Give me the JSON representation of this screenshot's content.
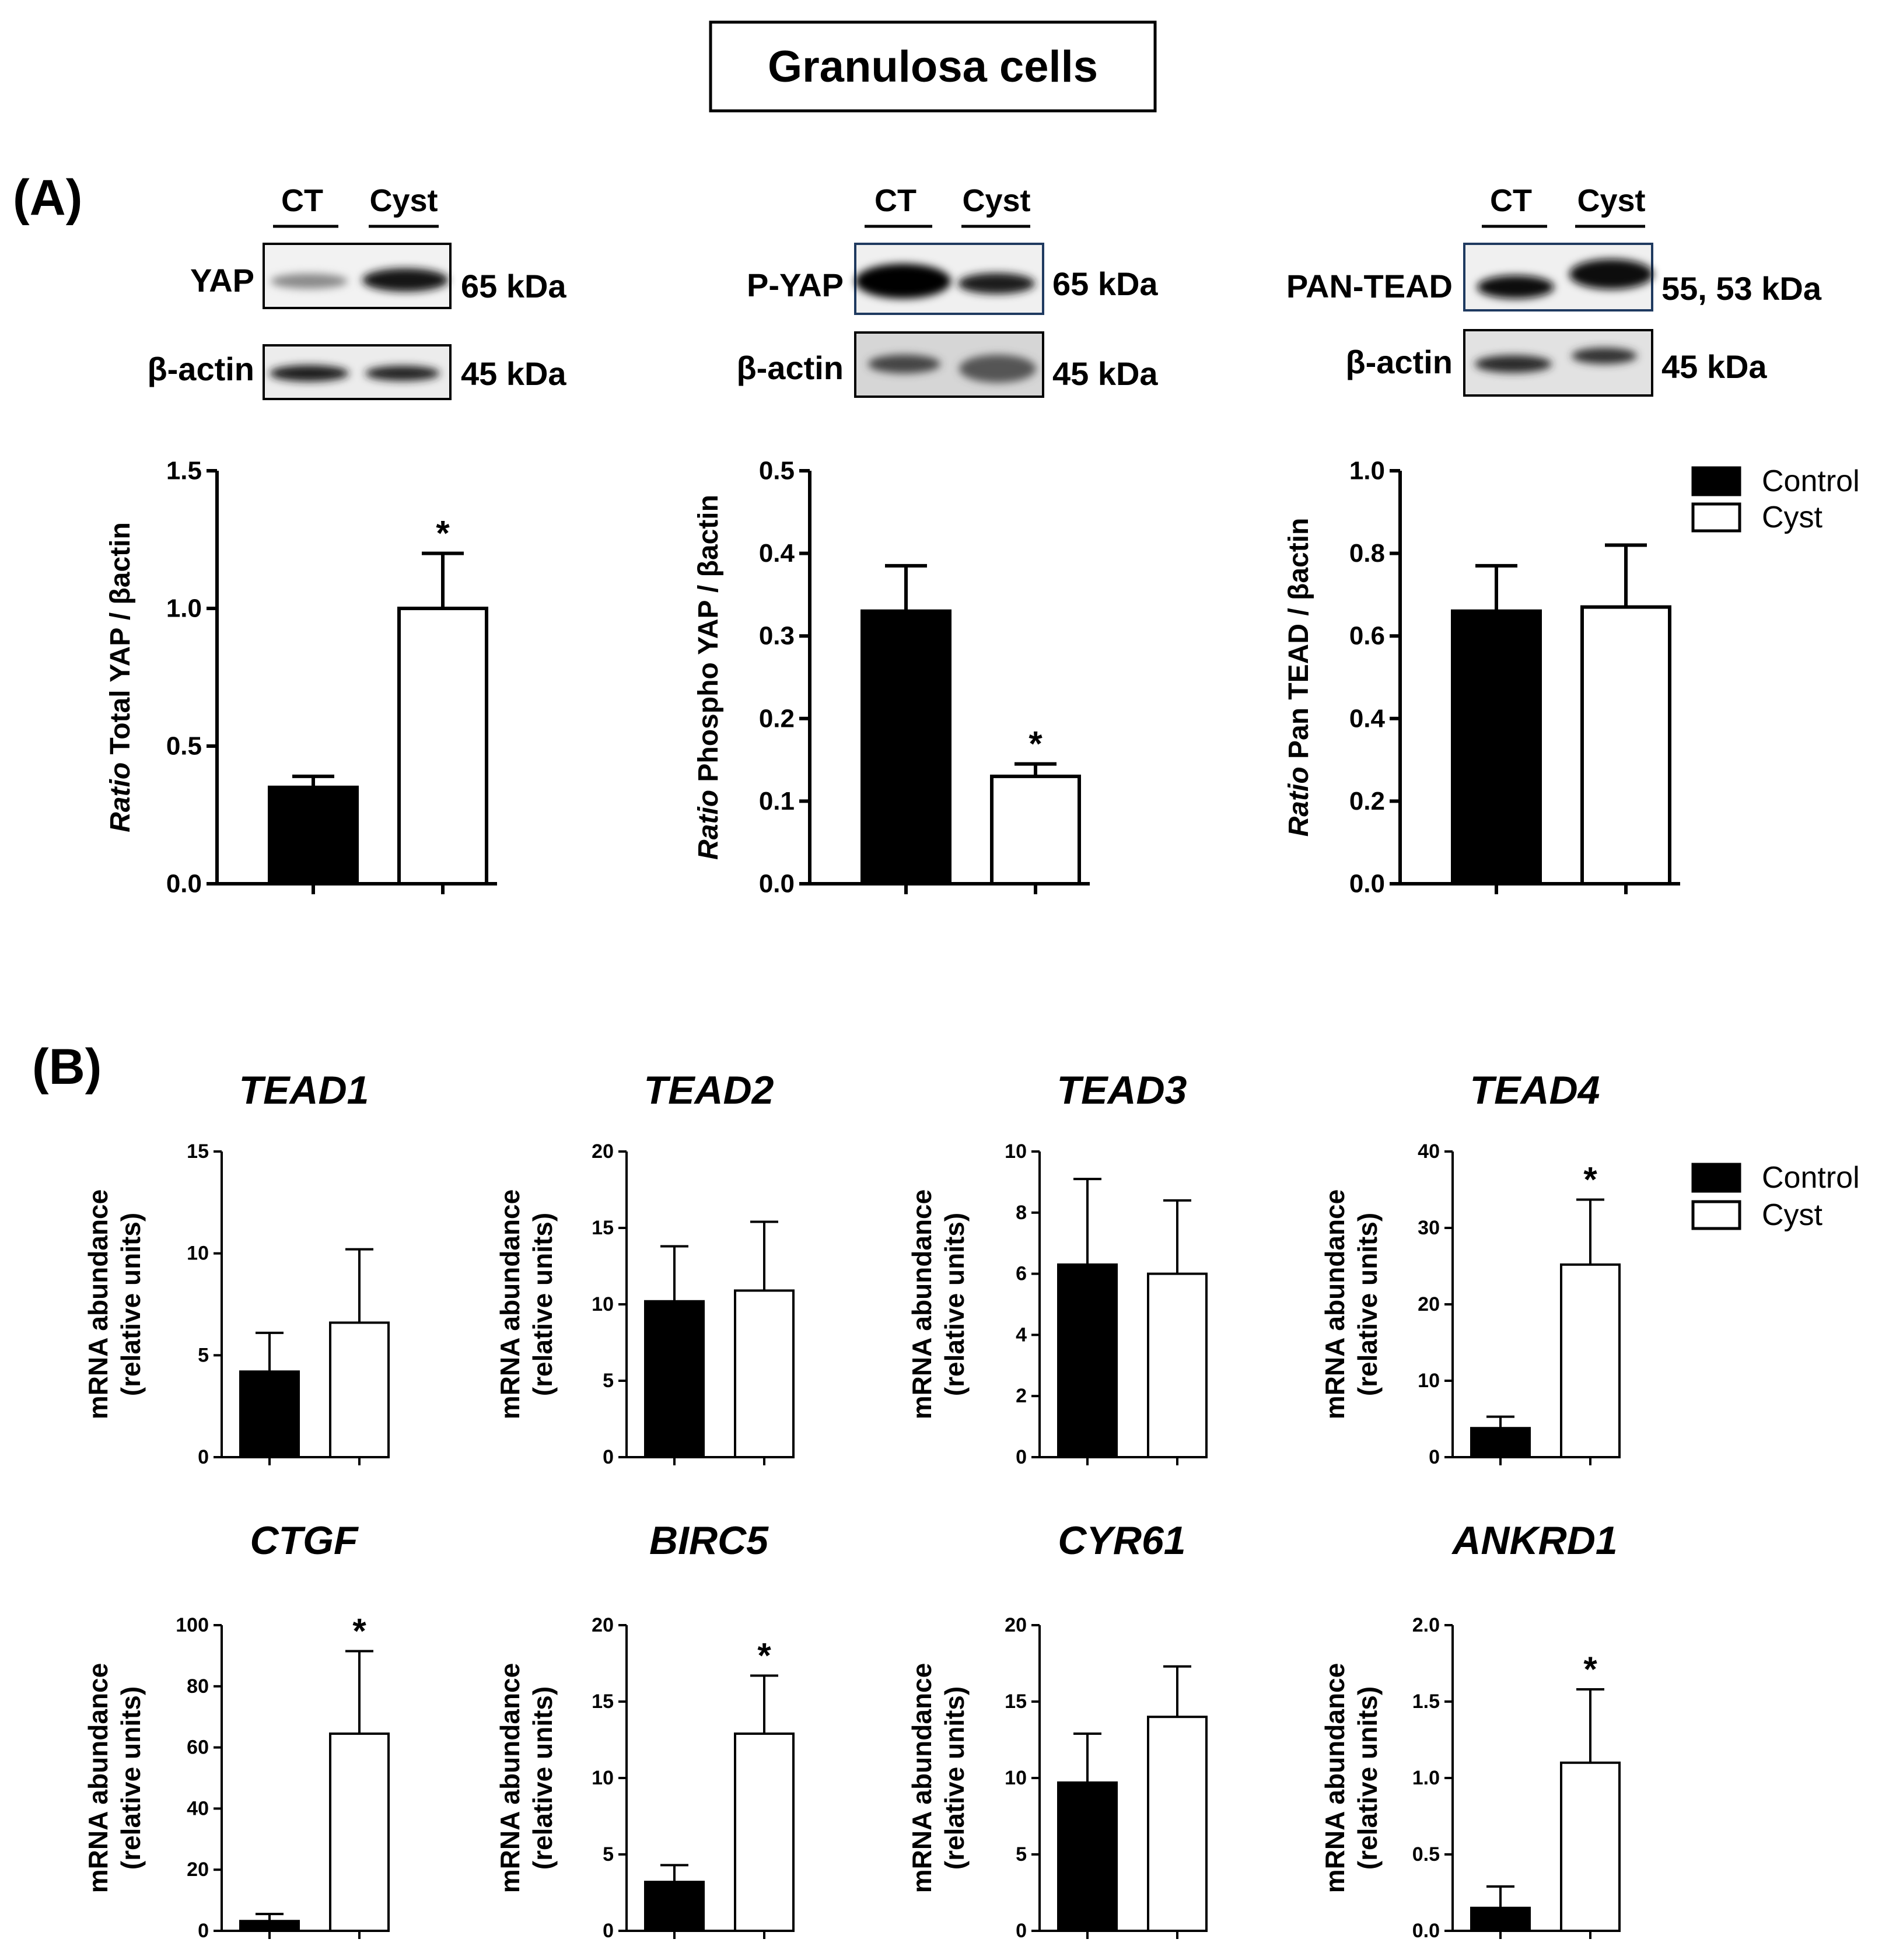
{
  "title": "Granulosa cells",
  "panel_labels": {
    "a": "(A)",
    "b": "(B)"
  },
  "legend": {
    "items": [
      {
        "label": "Control",
        "fill": "#000000"
      },
      {
        "label": "Cyst",
        "fill": "#ffffff"
      }
    ]
  },
  "blots": [
    {
      "lanes": [
        "CT",
        "Cyst"
      ],
      "protein": "YAP",
      "protein_kda": "65 kDa",
      "loading": "β-actin",
      "loading_kda": "45 kDa"
    },
    {
      "lanes": [
        "CT",
        "Cyst"
      ],
      "protein": "P-YAP",
      "protein_kda": "65 kDa",
      "loading": "β-actin",
      "loading_kda": "45 kDa"
    },
    {
      "lanes": [
        "CT",
        "Cyst"
      ],
      "protein": "PAN-TEAD",
      "protein_kda": "55, 53 kDa",
      "loading": "β-actin",
      "loading_kda": "45 kDa"
    }
  ],
  "chart_data": [
    {
      "type": "bar",
      "panel": "A",
      "title": "",
      "ylabel_italic": "Ratio",
      "ylabel_rest": "Total YAP / βactin",
      "ylim": [
        0,
        1.5
      ],
      "yticks": [
        "0.0",
        "0.5",
        "1.0",
        "1.5"
      ],
      "categories": [
        "Control",
        "Cyst"
      ],
      "values": [
        0.35,
        1.0
      ],
      "errors": [
        0.04,
        0.2
      ],
      "significance": [
        "",
        "*"
      ]
    },
    {
      "type": "bar",
      "panel": "A",
      "title": "",
      "ylabel_italic": "Ratio",
      "ylabel_rest": "Phospho YAP / βactin",
      "ylim": [
        0,
        0.5
      ],
      "yticks": [
        "0.0",
        "0.1",
        "0.2",
        "0.3",
        "0.4",
        "0.5"
      ],
      "categories": [
        "Control",
        "Cyst"
      ],
      "values": [
        0.33,
        0.13
      ],
      "errors": [
        0.055,
        0.015
      ],
      "significance": [
        "",
        "*"
      ]
    },
    {
      "type": "bar",
      "panel": "A",
      "title": "",
      "ylabel_italic": "Ratio",
      "ylabel_rest": "Pan TEAD / βactin",
      "ylim": [
        0,
        1.0
      ],
      "yticks": [
        "0.0",
        "0.2",
        "0.4",
        "0.6",
        "0.8",
        "1.0"
      ],
      "categories": [
        "Control",
        "Cyst"
      ],
      "values": [
        0.66,
        0.67
      ],
      "errors": [
        0.11,
        0.15
      ],
      "significance": [
        "",
        ""
      ]
    },
    {
      "type": "bar",
      "panel": "B",
      "title": "TEAD1",
      "ylabel": "mRNA abundance",
      "ylabel2": "(relative units)",
      "ylim": [
        0,
        15
      ],
      "yticks": [
        "0",
        "5",
        "10",
        "15"
      ],
      "categories": [
        "Control",
        "Cyst"
      ],
      "values": [
        4.2,
        6.6
      ],
      "errors": [
        1.9,
        3.6
      ],
      "significance": [
        "",
        ""
      ]
    },
    {
      "type": "bar",
      "panel": "B",
      "title": "TEAD2",
      "ylabel": "mRNA abundance",
      "ylabel2": "(relative units)",
      "ylim": [
        0,
        20
      ],
      "yticks": [
        "0",
        "5",
        "10",
        "15",
        "20"
      ],
      "categories": [
        "Control",
        "Cyst"
      ],
      "values": [
        10.2,
        10.9
      ],
      "errors": [
        3.6,
        4.5
      ],
      "significance": [
        "",
        ""
      ]
    },
    {
      "type": "bar",
      "panel": "B",
      "title": "TEAD3",
      "ylabel": "mRNA abundance",
      "ylabel2": "(relative units)",
      "ylim": [
        0,
        10
      ],
      "yticks": [
        "0",
        "2",
        "4",
        "6",
        "8",
        "10"
      ],
      "categories": [
        "Control",
        "Cyst"
      ],
      "values": [
        6.3,
        6.0
      ],
      "errors": [
        2.8,
        2.4
      ],
      "significance": [
        "",
        ""
      ]
    },
    {
      "type": "bar",
      "panel": "B",
      "title": "TEAD4",
      "ylabel": "mRNA abundance",
      "ylabel2": "(relative units)",
      "ylim": [
        0,
        40
      ],
      "yticks": [
        "0",
        "10",
        "20",
        "30",
        "40"
      ],
      "categories": [
        "Control",
        "Cyst"
      ],
      "values": [
        3.8,
        25.2
      ],
      "errors": [
        1.5,
        8.5
      ],
      "significance": [
        "",
        "*"
      ]
    },
    {
      "type": "bar",
      "panel": "B",
      "title": "CTGF",
      "ylabel": "mRNA abundance",
      "ylabel2": "(relative units)",
      "ylim": [
        0,
        100
      ],
      "yticks": [
        "0",
        "20",
        "40",
        "60",
        "80",
        "100"
      ],
      "categories": [
        "Control",
        "Cyst"
      ],
      "values": [
        3.2,
        64.5
      ],
      "errors": [
        2.3,
        27.0
      ],
      "significance": [
        "",
        "*"
      ]
    },
    {
      "type": "bar",
      "panel": "B",
      "title": "BIRC5",
      "ylabel": "mRNA abundance",
      "ylabel2": "(relative units)",
      "ylim": [
        0,
        20
      ],
      "yticks": [
        "0",
        "5",
        "10",
        "15",
        "20"
      ],
      "categories": [
        "Control",
        "Cyst"
      ],
      "values": [
        3.2,
        12.9
      ],
      "errors": [
        1.1,
        3.8
      ],
      "significance": [
        "",
        "*"
      ]
    },
    {
      "type": "bar",
      "panel": "B",
      "title": "CYR61",
      "ylabel": "mRNA abundance",
      "ylabel2": "(relative units)",
      "ylim": [
        0,
        20
      ],
      "yticks": [
        "0",
        "5",
        "10",
        "15",
        "20"
      ],
      "categories": [
        "Control",
        "Cyst"
      ],
      "values": [
        9.7,
        14.0
      ],
      "errors": [
        3.2,
        3.3
      ],
      "significance": [
        "",
        ""
      ]
    },
    {
      "type": "bar",
      "panel": "B",
      "title": "ANKRD1",
      "ylabel": "mRNA abundance",
      "ylabel2": "(relative units)",
      "ylim": [
        0,
        2.0
      ],
      "yticks": [
        "0.0",
        "0.5",
        "1.0",
        "1.5",
        "2.0"
      ],
      "categories": [
        "Control",
        "Cyst"
      ],
      "values": [
        0.15,
        1.1
      ],
      "errors": [
        0.14,
        0.48
      ],
      "significance": [
        "",
        "*"
      ]
    }
  ]
}
